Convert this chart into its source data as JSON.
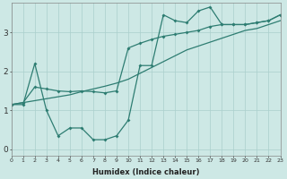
{
  "xlabel": "Humidex (Indice chaleur)",
  "background_color": "#cde8e5",
  "grid_color": "#aacfcc",
  "line_color": "#2e7d72",
  "x_min": 0,
  "x_max": 23,
  "y_min": -0.15,
  "y_max": 3.75,
  "yticks": [
    0,
    1,
    2,
    3
  ],
  "xticks": [
    0,
    1,
    2,
    3,
    4,
    5,
    6,
    7,
    8,
    9,
    10,
    11,
    12,
    13,
    14,
    15,
    16,
    17,
    18,
    19,
    20,
    21,
    22,
    23
  ],
  "line_smooth_x": [
    0,
    1,
    2,
    3,
    4,
    5,
    6,
    7,
    8,
    9,
    10,
    11,
    12,
    13,
    14,
    15,
    16,
    17,
    18,
    19,
    20,
    21,
    22,
    23
  ],
  "line_smooth_y": [
    1.15,
    1.2,
    1.25,
    1.3,
    1.35,
    1.4,
    1.48,
    1.55,
    1.62,
    1.7,
    1.8,
    1.95,
    2.1,
    2.25,
    2.4,
    2.55,
    2.65,
    2.75,
    2.85,
    2.95,
    3.05,
    3.1,
    3.2,
    3.3
  ],
  "line_zigzag_x": [
    0,
    1,
    2,
    3,
    4,
    5,
    6,
    7,
    8,
    9,
    10,
    11,
    12,
    13,
    14,
    15,
    16,
    17,
    18,
    19,
    20,
    21,
    22,
    23
  ],
  "line_zigzag_y": [
    1.15,
    1.15,
    2.2,
    1.0,
    0.35,
    0.55,
    0.55,
    0.25,
    0.25,
    0.35,
    0.75,
    2.15,
    2.15,
    3.45,
    3.3,
    3.25,
    3.55,
    3.65,
    3.2,
    3.2,
    3.2,
    3.25,
    3.3,
    3.45
  ],
  "line_upper_x": [
    0,
    1,
    2,
    3,
    4,
    5,
    6,
    7,
    8,
    9,
    10,
    11,
    12,
    13,
    14,
    15,
    16,
    17,
    18,
    19,
    20,
    21,
    22,
    23
  ],
  "line_upper_y": [
    1.15,
    1.2,
    1.6,
    1.55,
    1.5,
    1.48,
    1.5,
    1.48,
    1.45,
    1.5,
    2.6,
    2.72,
    2.82,
    2.9,
    2.95,
    3.0,
    3.05,
    3.15,
    3.2,
    3.2,
    3.2,
    3.25,
    3.3,
    3.45
  ]
}
